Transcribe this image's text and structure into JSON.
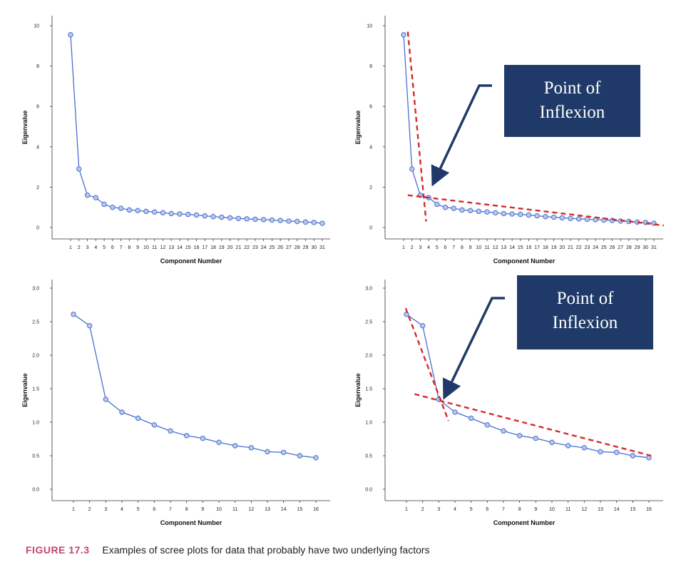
{
  "caption": {
    "label": "FIGURE 17.3",
    "text": "Examples of scree plots for data that probably have two underlying factors"
  },
  "colors": {
    "line": "#4a6fd0",
    "marker_fill": "#b9c9ee",
    "marker_stroke": "#4a6fd0",
    "dashed": "#d42a2a",
    "callout_bg": "#1f3a68",
    "callout_text": "#ffffff",
    "arrow": "#1f3a68",
    "caption_label": "#c4456b"
  },
  "chart_data": [
    {
      "type": "line",
      "xlabel": "Component Number",
      "ylabel": "Eigenvalue",
      "ylim": [
        0,
        10
      ],
      "yticks": [
        0,
        2,
        4,
        6,
        8,
        10
      ],
      "x": [
        1,
        2,
        3,
        4,
        5,
        6,
        7,
        8,
        9,
        10,
        11,
        12,
        13,
        14,
        15,
        16,
        17,
        18,
        19,
        20,
        21,
        22,
        23,
        24,
        25,
        26,
        27,
        28,
        29,
        30,
        31
      ],
      "y": [
        9.55,
        2.9,
        1.6,
        1.48,
        1.15,
        1.0,
        0.95,
        0.87,
        0.84,
        0.8,
        0.77,
        0.73,
        0.69,
        0.67,
        0.65,
        0.62,
        0.58,
        0.54,
        0.51,
        0.48,
        0.45,
        0.43,
        0.41,
        0.39,
        0.37,
        0.35,
        0.32,
        0.3,
        0.27,
        0.25,
        0.21
      ],
      "annotation": null
    },
    {
      "type": "line",
      "xlabel": "Component Number",
      "ylabel": "Eigenvalue",
      "ylim": [
        0,
        10
      ],
      "yticks": [
        0,
        2,
        4,
        6,
        8,
        10
      ],
      "x": [
        1,
        2,
        3,
        4,
        5,
        6,
        7,
        8,
        9,
        10,
        11,
        12,
        13,
        14,
        15,
        16,
        17,
        18,
        19,
        20,
        21,
        22,
        23,
        24,
        25,
        26,
        27,
        28,
        29,
        30,
        31
      ],
      "y": [
        9.55,
        2.9,
        1.6,
        1.48,
        1.15,
        1.0,
        0.95,
        0.87,
        0.84,
        0.8,
        0.77,
        0.73,
        0.69,
        0.67,
        0.65,
        0.62,
        0.58,
        0.54,
        0.51,
        0.48,
        0.45,
        0.43,
        0.41,
        0.39,
        0.37,
        0.35,
        0.32,
        0.3,
        0.27,
        0.25,
        0.21
      ],
      "trend_lines": [
        {
          "from": [
            1.5,
            9.7
          ],
          "to": [
            3.7,
            0.3
          ]
        },
        {
          "from": [
            1.5,
            1.6
          ],
          "to": [
            32.2,
            0.1
          ]
        }
      ],
      "annotation": {
        "lines": [
          "Point of",
          "Inflexion"
        ],
        "arrow_to": [
          4.2,
          2.2
        ]
      }
    },
    {
      "type": "line",
      "xlabel": "Component Number",
      "ylabel": "Eigenvalue",
      "ylim": [
        0,
        3
      ],
      "yticks": [
        0.0,
        0.5,
        1.0,
        1.5,
        2.0,
        2.5,
        3.0
      ],
      "x": [
        1,
        2,
        3,
        4,
        5,
        6,
        7,
        8,
        9,
        10,
        11,
        12,
        13,
        14,
        15,
        16
      ],
      "y": [
        2.61,
        2.44,
        1.34,
        1.15,
        1.06,
        0.96,
        0.87,
        0.8,
        0.76,
        0.7,
        0.65,
        0.62,
        0.56,
        0.55,
        0.5,
        0.47
      ],
      "annotation": null
    },
    {
      "type": "line",
      "xlabel": "Component Number",
      "ylabel": "Eigenvalue",
      "ylim": [
        0,
        3
      ],
      "yticks": [
        0.0,
        0.5,
        1.0,
        1.5,
        2.0,
        2.5,
        3.0
      ],
      "x": [
        1,
        2,
        3,
        4,
        5,
        6,
        7,
        8,
        9,
        10,
        11,
        12,
        13,
        14,
        15,
        16
      ],
      "y": [
        2.61,
        2.44,
        1.34,
        1.15,
        1.06,
        0.96,
        0.87,
        0.8,
        0.76,
        0.7,
        0.65,
        0.62,
        0.56,
        0.55,
        0.5,
        0.47
      ],
      "trend_lines": [
        {
          "from": [
            0.95,
            2.7
          ],
          "to": [
            3.6,
            1.02
          ]
        },
        {
          "from": [
            1.5,
            1.42
          ],
          "to": [
            16.3,
            0.49
          ]
        }
      ],
      "annotation": {
        "lines": [
          "Point of",
          "Inflexion"
        ],
        "arrow_to": [
          3.3,
          1.42
        ]
      }
    }
  ]
}
